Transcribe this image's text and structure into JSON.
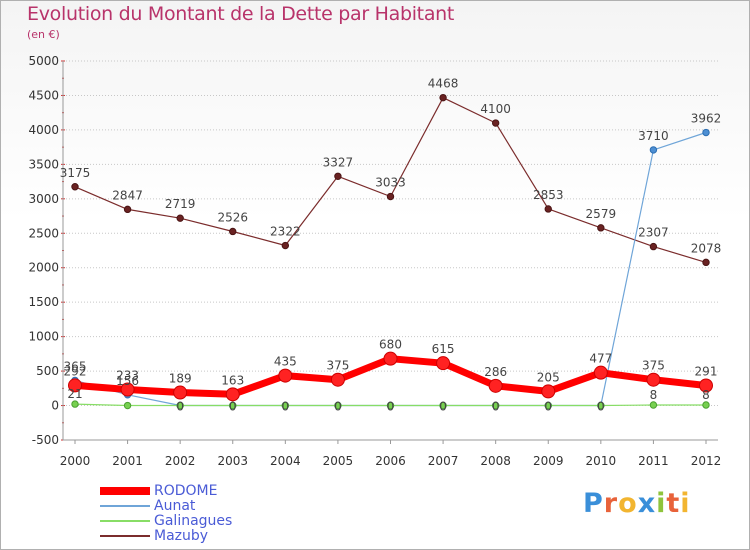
{
  "title": "Evolution du Montant de la Dette par Habitant",
  "unit": "(en €)",
  "logo": "Proxiti",
  "colors": {
    "title": "#b8336a",
    "rodome": "#ff0000",
    "aunat": "#6fa5d8",
    "galinagues": "#88dd66",
    "mazuby": "#7b2c2c",
    "legend_text": "#4a5bd6",
    "grid": "#c7c7c7"
  },
  "chart_data": {
    "type": "line",
    "x": [
      "2000",
      "2001",
      "2002",
      "2003",
      "2004",
      "2005",
      "2006",
      "2007",
      "2008",
      "2009",
      "2010",
      "2011",
      "2012"
    ],
    "ylim": [
      -500,
      5000
    ],
    "yticks": [
      -500,
      0,
      500,
      1000,
      1500,
      2000,
      2500,
      3000,
      3500,
      4000,
      4500,
      5000
    ],
    "grid": "horizontal",
    "legend_placement": "bottom-left",
    "series": [
      {
        "name": "RODOME",
        "key": "rodome",
        "values": [
          292,
          233,
          189,
          163,
          435,
          375,
          680,
          615,
          286,
          205,
          477,
          375,
          291
        ],
        "labels": [
          "292",
          "233",
          "189",
          "163",
          "435",
          "375",
          "680",
          "615",
          "286",
          "205",
          "477",
          "375",
          "291"
        ]
      },
      {
        "name": "Aunat",
        "key": "aunat",
        "values": [
          365,
          156,
          0,
          0,
          0,
          0,
          0,
          0,
          0,
          0,
          0,
          3710,
          3962
        ],
        "labels": [
          "365",
          "156",
          "0",
          "0",
          "0",
          "0",
          "0",
          "0",
          "0",
          "0",
          "0",
          "3710",
          "3962"
        ]
      },
      {
        "name": "Galinagues",
        "key": "galinagues",
        "values": [
          21,
          0,
          0,
          0,
          0,
          0,
          0,
          0,
          0,
          0,
          0,
          8,
          8
        ],
        "labels": [
          "21",
          "",
          "",
          "",
          "",
          "",
          "",
          "",
          "",
          "",
          "",
          "8",
          "8"
        ]
      },
      {
        "name": "Mazuby",
        "key": "mazuby",
        "values": [
          3175,
          2847,
          2719,
          2526,
          2322,
          3327,
          3033,
          4468,
          4100,
          2853,
          2579,
          2307,
          2078
        ],
        "labels": [
          "3175",
          "2847",
          "2719",
          "2526",
          "2322",
          "3327",
          "3033",
          "4468",
          "4100",
          "2853",
          "2579",
          "2307",
          "2078"
        ]
      }
    ]
  }
}
